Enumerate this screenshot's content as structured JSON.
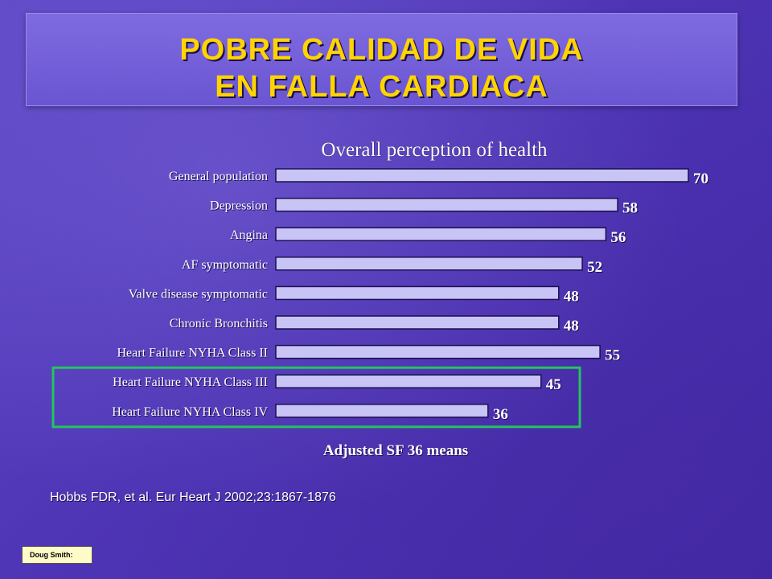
{
  "title": {
    "line1": "POBRE CALIDAD DE VIDA",
    "line2": "EN FALLA CARDIACA"
  },
  "source": "Hobbs FDR, et al. Eur Heart J 2002;23:1867-1876",
  "note_label": "Doug Smith:",
  "colors": {
    "bar_fill": "#c8c4f5",
    "bar_stroke": "#1a1050",
    "highlight_box": "#22c55e",
    "label_text": "#ffffff",
    "title_text": "#ffd400"
  },
  "chart_data": {
    "type": "bar",
    "orientation": "horizontal",
    "title": "Overall perception of health",
    "xlabel": "Adjusted SF 36 means",
    "categories": [
      "General population",
      "Depression",
      "Angina",
      "AF symptomatic",
      "Valve disease symptomatic",
      "Chronic Bronchitis",
      "Heart Failure NYHA Class II",
      "Heart Failure NYHA Class III",
      "Heart Failure NYHA Class IV"
    ],
    "values": [
      70,
      58,
      56,
      52,
      48,
      48,
      55,
      45,
      36
    ],
    "value_labels": [
      "70",
      "58",
      "56",
      "52",
      "48",
      "48",
      "55",
      "45",
      "36"
    ],
    "highlighted_categories": [
      "Heart Failure NYHA Class III",
      "Heart Failure NYHA Class IV"
    ],
    "xlim": [
      0,
      70
    ],
    "grid": false,
    "legend": "none"
  }
}
